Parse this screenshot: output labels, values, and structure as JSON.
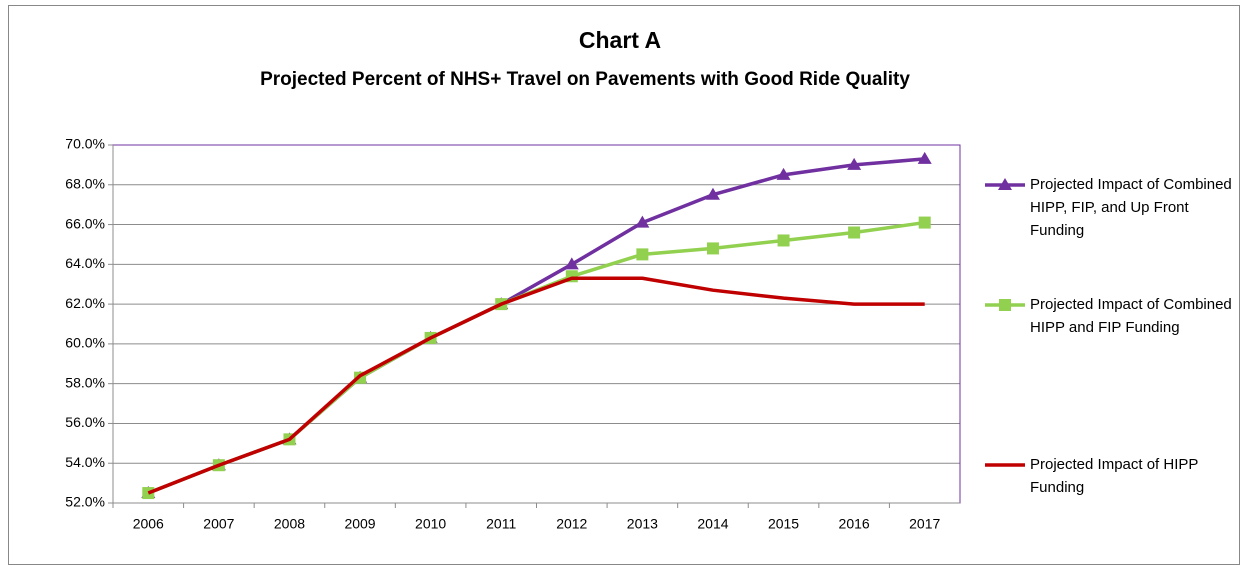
{
  "chart_data": {
    "type": "line",
    "title": "Chart A",
    "subtitle": "Projected Percent of NHS+ Travel on Pavements with Good Ride Quality",
    "categories": [
      "2006",
      "2007",
      "2008",
      "2009",
      "2010",
      "2011",
      "2012",
      "2013",
      "2014",
      "2015",
      "2016",
      "2017"
    ],
    "series": [
      {
        "name": "Projected Impact of Combined HIPP, FIP, and Up Front Funding",
        "color": "#7030a0",
        "marker": "triangle",
        "values": [
          52.5,
          53.9,
          55.2,
          58.3,
          60.3,
          62.0,
          64.0,
          66.1,
          67.5,
          68.5,
          69.0,
          69.3
        ]
      },
      {
        "name": "Projected Impact of Combined HIPP and FIP Funding",
        "color": "#92d050",
        "marker": "square",
        "values": [
          52.5,
          53.9,
          55.2,
          58.3,
          60.3,
          62.0,
          63.4,
          64.5,
          64.8,
          65.2,
          65.6,
          66.1
        ]
      },
      {
        "name": "Projected Impact of HIPP Funding",
        "color": "#c00000",
        "marker": "none",
        "values": [
          52.5,
          53.9,
          55.2,
          58.4,
          60.3,
          62.0,
          63.3,
          63.3,
          62.7,
          62.3,
          62.0,
          62.0
        ]
      }
    ],
    "ylim": [
      52,
      70
    ],
    "yticks": [
      {
        "value": 52,
        "label": "52.0%"
      },
      {
        "value": 54,
        "label": "54.0%"
      },
      {
        "value": 56,
        "label": "56.0%"
      },
      {
        "value": 58,
        "label": "58.0%"
      },
      {
        "value": 60,
        "label": "60.0%"
      },
      {
        "value": 62,
        "label": "62.0%"
      },
      {
        "value": 64,
        "label": "64.0%"
      },
      {
        "value": 66,
        "label": "66.0%"
      },
      {
        "value": 68,
        "label": "68.0%"
      },
      {
        "value": 70,
        "label": "70.0%"
      }
    ],
    "grid": true,
    "legend": "right"
  }
}
